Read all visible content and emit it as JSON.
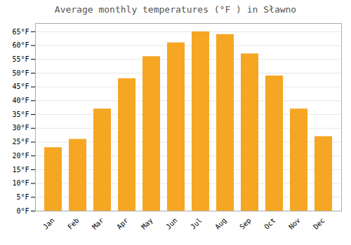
{
  "chart_data": {
    "type": "bar",
    "title": "Average monthly temperatures (°F ) in Sławno",
    "categories": [
      "Jan",
      "Feb",
      "Mar",
      "Apr",
      "May",
      "Jun",
      "Jul",
      "Aug",
      "Sep",
      "Oct",
      "Nov",
      "Dec"
    ],
    "values": [
      23,
      26,
      37,
      48,
      56,
      61,
      65,
      64,
      57,
      49,
      37,
      27
    ],
    "color": "#F5A623",
    "ylim": [
      0,
      68
    ],
    "yticks": [
      {
        "value": 0,
        "label": "0°F"
      },
      {
        "value": 5,
        "label": "5°F"
      },
      {
        "value": 10,
        "label": "10°F"
      },
      {
        "value": 15,
        "label": "15°F"
      },
      {
        "value": 20,
        "label": "20°F"
      },
      {
        "value": 25,
        "label": "25°F"
      },
      {
        "value": 30,
        "label": "30°F"
      },
      {
        "value": 35,
        "label": "35°F"
      },
      {
        "value": 40,
        "label": "40°F"
      },
      {
        "value": 45,
        "label": "45°F"
      },
      {
        "value": 50,
        "label": "50°F"
      },
      {
        "value": 55,
        "label": "55°F"
      },
      {
        "value": 60,
        "label": "60°F"
      },
      {
        "value": 65,
        "label": "65°F"
      }
    ],
    "grid": true
  }
}
